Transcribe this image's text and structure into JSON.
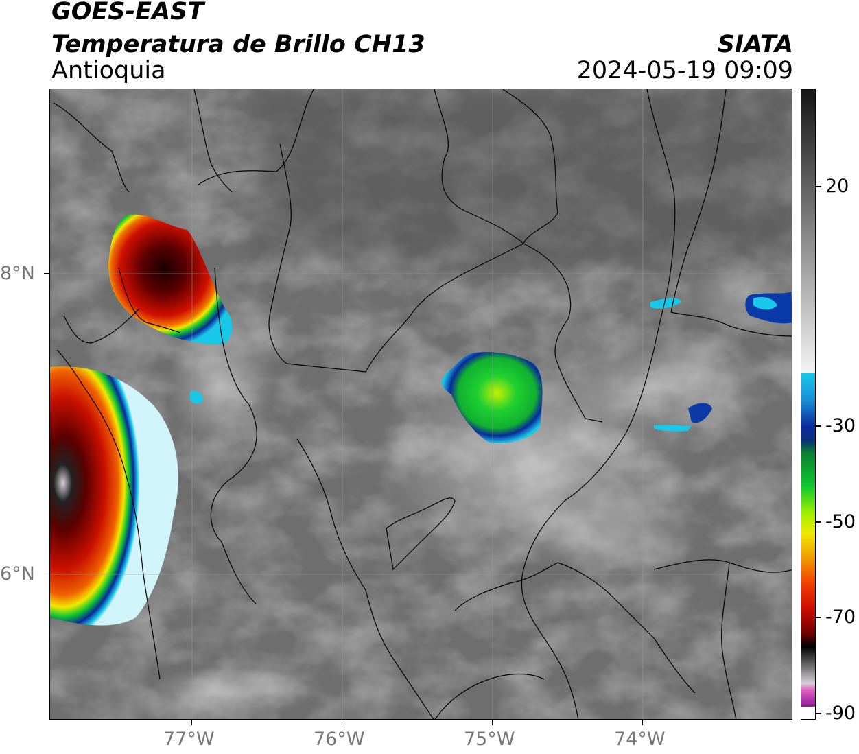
{
  "header": {
    "satellite": "GOES-EAST",
    "product": "Temperatura de Brillo CH13",
    "region": "Antioquia",
    "organization": "SIATA",
    "timestamp": "2024-05-19 09:09"
  },
  "map": {
    "lon_range": [
      -77.95,
      -73.0
    ],
    "lat_range": [
      5.05,
      9.25
    ],
    "longitude_ticks": [
      {
        "value": -77,
        "label": "77°W"
      },
      {
        "value": -76,
        "label": "76°W"
      },
      {
        "value": -75,
        "label": "75°W"
      },
      {
        "value": -74,
        "label": "74°W"
      }
    ],
    "latitude_ticks": [
      {
        "value": 8,
        "label": "8°N"
      },
      {
        "value": 6,
        "label": "6°N"
      }
    ],
    "grid": true
  },
  "colorbar": {
    "unit_range": [
      -90,
      40
    ],
    "ticks": [
      {
        "value": 20,
        "label": "20"
      },
      {
        "value": -30,
        "label": "-30"
      },
      {
        "value": -50,
        "label": "-50"
      },
      {
        "value": -70,
        "label": "-70"
      },
      {
        "value": -90,
        "label": "-90"
      }
    ],
    "colors": {
      "warm_dark": "#151515",
      "warm_light": "#f2f2f2",
      "cyan": "#18c8e8",
      "blue": "#0a2a9a",
      "green": "#10c830",
      "yellow": "#f0e800",
      "orange": "#f08a00",
      "red": "#e01000",
      "dark_red": "#5a0000",
      "black": "#000000",
      "light_gray": "#d8d0d8",
      "pink": "#e060c0",
      "purple": "#90189a"
    }
  }
}
